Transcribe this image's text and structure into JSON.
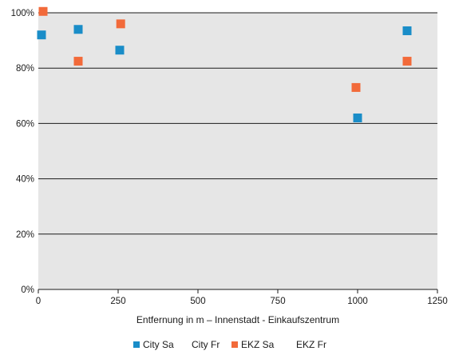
{
  "chart_data": {
    "type": "scatter",
    "title": "",
    "xlabel": "Entfernung in m – Innenstadt - Einkaufszentrum",
    "ylabel": "",
    "xlim": [
      0,
      1250
    ],
    "ylim": [
      0,
      1
    ],
    "x_ticks": [
      0,
      250,
      500,
      750,
      1000,
      1250
    ],
    "x_tick_labels": [
      "0",
      "250",
      "500",
      "750",
      "1000",
      "1250"
    ],
    "y_ticks": [
      0,
      0.2,
      0.4,
      0.6,
      0.8,
      1.0
    ],
    "y_tick_labels": [
      "0%",
      "20%",
      "40%",
      "60%",
      "80%",
      "100%"
    ],
    "grid": "horizontal",
    "legend_position": "bottom",
    "plot_background": "#e6e6e6",
    "series": [
      {
        "name": "City Sa",
        "color": "#1a8dc8",
        "marker": "square",
        "points": [
          {
            "x": 10,
            "y": 0.92
          },
          {
            "x": 125,
            "y": 0.94
          },
          {
            "x": 255,
            "y": 0.865
          },
          {
            "x": 1000,
            "y": 0.62
          },
          {
            "x": 1155,
            "y": 0.935
          }
        ]
      },
      {
        "name": "City Fr",
        "color": "#ffffff",
        "marker": "none",
        "points": []
      },
      {
        "name": "EKZ Sa",
        "color": "#f26a3a",
        "marker": "square",
        "points": [
          {
            "x": 15,
            "y": 1.005
          },
          {
            "x": 125,
            "y": 0.825
          },
          {
            "x": 258,
            "y": 0.96
          },
          {
            "x": 995,
            "y": 0.73
          },
          {
            "x": 1155,
            "y": 0.825
          }
        ]
      },
      {
        "name": "EKZ Fr",
        "color": "#ffffff",
        "marker": "none",
        "points": []
      }
    ]
  }
}
